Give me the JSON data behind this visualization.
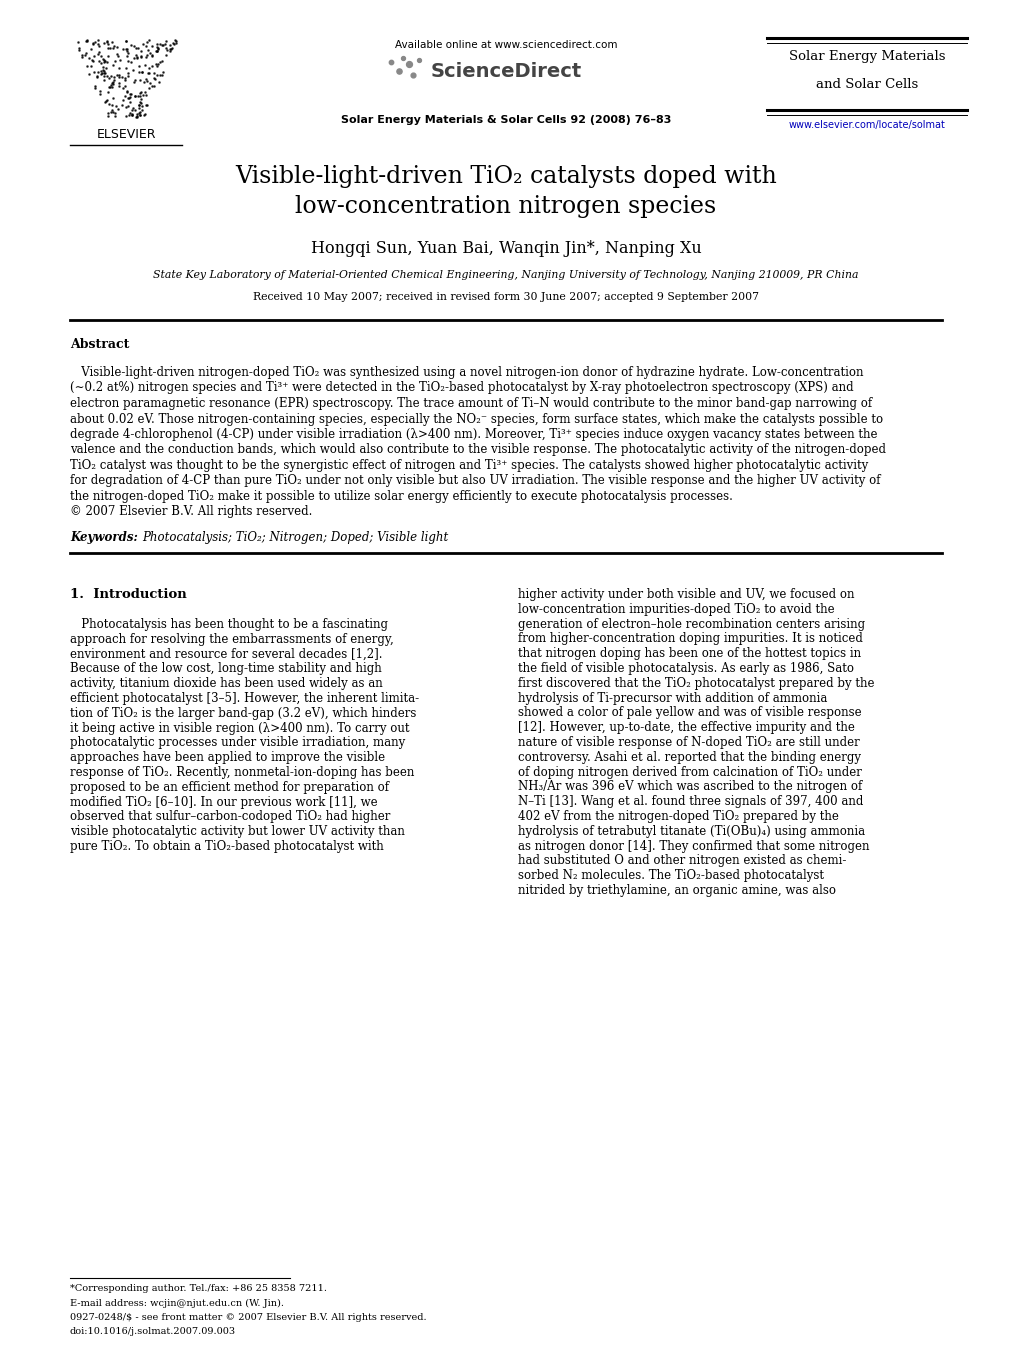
{
  "background_color": "#ffffff",
  "page_width": 9.92,
  "page_height": 13.23,
  "header": {
    "available_online": "Available online at www.sciencedirect.com",
    "journal_ref": "Solar Energy Materials & Solar Cells 92 (2008) 76–83",
    "journal_name_line1": "Solar Energy Materials",
    "journal_name_line2": "and Solar Cells",
    "journal_url": "www.elsevier.com/locate/solmat",
    "elsevier_label": "ELSEVIER"
  },
  "title_line1": "Visible-light-driven TiO₂ catalysts doped with",
  "title_line2": "low-concentration nitrogen species",
  "authors": "Hongqi Sun, Yuan Bai, Wanqin Jin*, Nanping Xu",
  "affiliation": "State Key Laboratory of Material-Oriented Chemical Engineering, Nanjing University of Technology, Nanjing 210009, PR China",
  "received": "Received 10 May 2007; received in revised form 30 June 2007; accepted 9 September 2007",
  "abstract_title": "Abstract",
  "abstract_lines": [
    "   Visible-light-driven nitrogen-doped TiO₂ was synthesized using a novel nitrogen-ion donor of hydrazine hydrate. Low-concentration",
    "(∼0.2 at%) nitrogen species and Ti³⁺ were detected in the TiO₂-based photocatalyst by X-ray photoelectron spectroscopy (XPS) and",
    "electron paramagnetic resonance (EPR) spectroscopy. The trace amount of Ti–N would contribute to the minor band-gap narrowing of",
    "about 0.02 eV. Those nitrogen-containing species, especially the NO₂⁻ species, form surface states, which make the catalysts possible to",
    "degrade 4-chlorophenol (4-CP) under visible irradiation (λ>400 nm). Moreover, Ti³⁺ species induce oxygen vacancy states between the",
    "valence and the conduction bands, which would also contribute to the visible response. The photocatalytic activity of the nitrogen-doped",
    "TiO₂ catalyst was thought to be the synergistic effect of nitrogen and Ti³⁺ species. The catalysts showed higher photocatalytic activity",
    "for degradation of 4-CP than pure TiO₂ under not only visible but also UV irradiation. The visible response and the higher UV activity of",
    "the nitrogen-doped TiO₂ make it possible to utilize solar energy efficiently to execute photocatalysis processes.",
    "© 2007 Elsevier B.V. All rights reserved."
  ],
  "keywords_label": "Keywords:",
  "keywords_text": "Photocatalysis; TiO₂; Nitrogen; Doped; Visible light",
  "section1_title": "1.  Introduction",
  "intro_left_lines": [
    "   Photocatalysis has been thought to be a fascinating",
    "approach for resolving the embarrassments of energy,",
    "environment and resource for several decades [1,2].",
    "Because of the low cost, long-time stability and high",
    "activity, titanium dioxide has been used widely as an",
    "efficient photocatalyst [3–5]. However, the inherent limita-",
    "tion of TiO₂ is the larger band-gap (3.2 eV), which hinders",
    "it being active in visible region (λ>400 nm). To carry out",
    "photocatalytic processes under visible irradiation, many",
    "approaches have been applied to improve the visible",
    "response of TiO₂. Recently, nonmetal-ion-doping has been",
    "proposed to be an efficient method for preparation of",
    "modified TiO₂ [6–10]. In our previous work [11], we",
    "observed that sulfur–carbon-codoped TiO₂ had higher",
    "visible photocatalytic activity but lower UV activity than",
    "pure TiO₂. To obtain a TiO₂-based photocatalyst with"
  ],
  "intro_right_lines": [
    "higher activity under both visible and UV, we focused on",
    "low-concentration impurities-doped TiO₂ to avoid the",
    "generation of electron–hole recombination centers arising",
    "from higher-concentration doping impurities. It is noticed",
    "that nitrogen doping has been one of the hottest topics in",
    "the field of visible photocatalysis. As early as 1986, Sato",
    "first discovered that the TiO₂ photocatalyst prepared by the",
    "hydrolysis of Ti-precursor with addition of ammonia",
    "showed a color of pale yellow and was of visible response",
    "[12]. However, up-to-date, the effective impurity and the",
    "nature of visible response of N-doped TiO₂ are still under",
    "controversy. Asahi et al. reported that the binding energy",
    "of doping nitrogen derived from calcination of TiO₂ under",
    "NH₃/Ar was 396 eV which was ascribed to the nitrogen of",
    "N–Ti [13]. Wang et al. found three signals of 397, 400 and",
    "402 eV from the nitrogen-doped TiO₂ prepared by the",
    "hydrolysis of tetrabutyl titanate (Ti(OBu)₄) using ammonia",
    "as nitrogen donor [14]. They confirmed that some nitrogen",
    "had substituted O and other nitrogen existed as chemi-",
    "sorbed N₂ molecules. The TiO₂-based photocatalyst",
    "nitrided by triethylamine, an organic amine, was also"
  ],
  "footnote_star": "*Corresponding author. Tel./fax: +86 25 8358 7211.",
  "footnote_email": "E-mail address: wcjin@njut.edu.cn (W. Jin).",
  "footnote_issn": "0927-0248/$ - see front matter © 2007 Elsevier B.V. All rights reserved.",
  "footnote_doi": "doi:10.1016/j.solmat.2007.09.003"
}
